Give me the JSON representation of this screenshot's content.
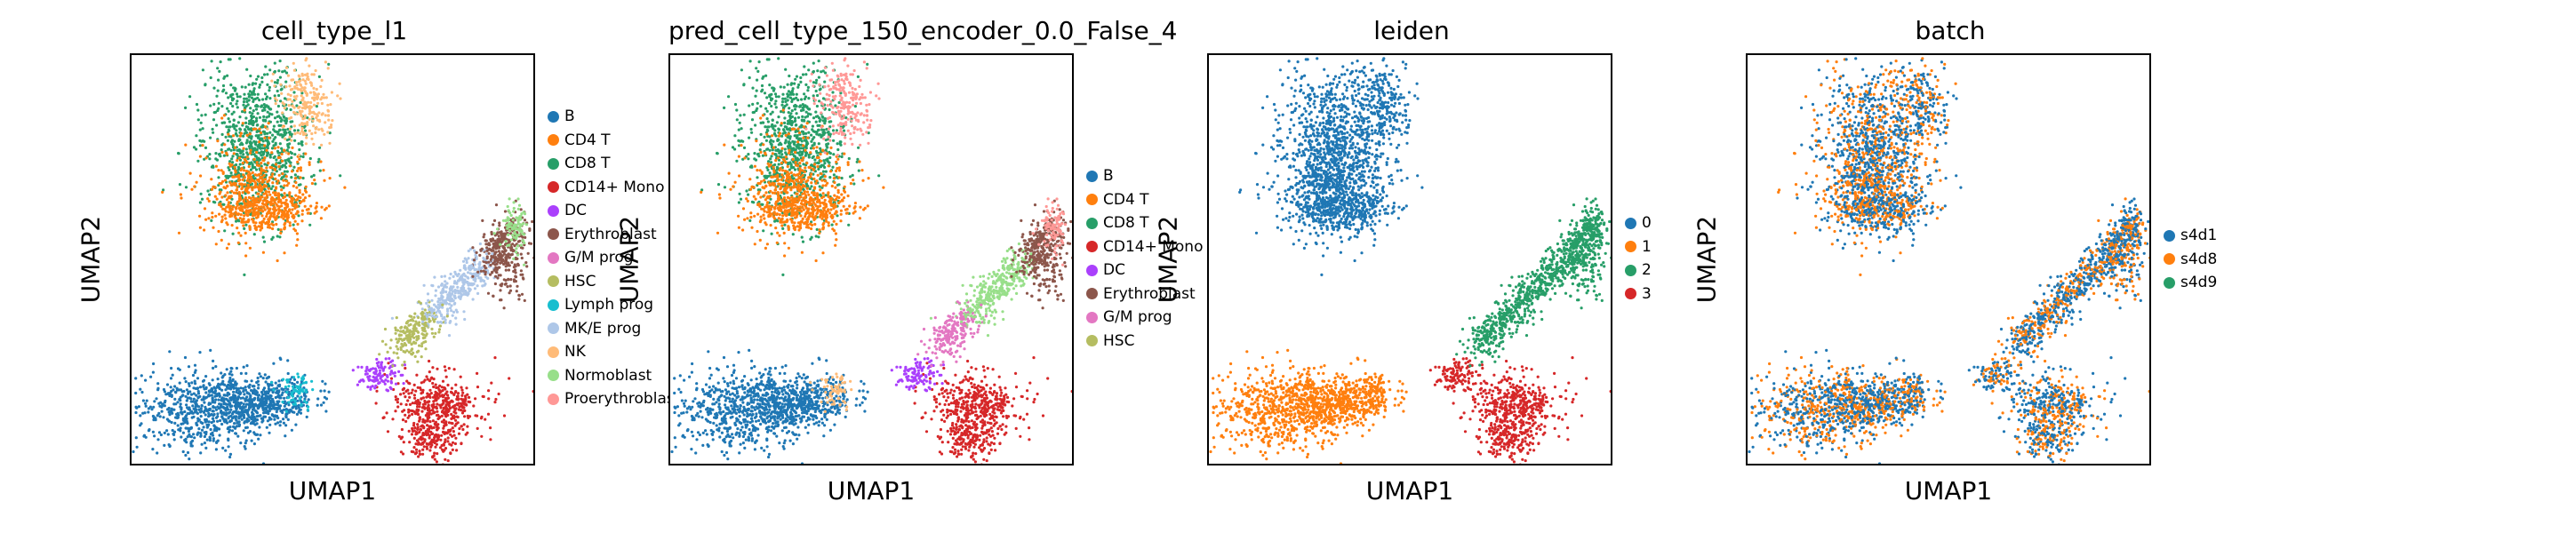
{
  "palette": {
    "B": "#1f77b4",
    "CD4 T": "#ff7f0e",
    "CD8 T": "#279e68",
    "CD14+ Mono": "#d62728",
    "DC": "#aa40fc",
    "Erythroblast": "#8c564b",
    "G/M prog": "#e377c2",
    "HSC": "#b5bd61",
    "Lymph prog": "#17becf",
    "MK/E prog": "#aec7e8",
    "NK": "#ffbb78",
    "Normoblast": "#98df8a",
    "Proerythroblast": "#ff9896"
  },
  "chart_data": [
    {
      "type": "scatter",
      "title": "cell_type_l1",
      "xlabel": "UMAP1",
      "ylabel": "UMAP2",
      "legend_position": "right",
      "legend": [
        "B",
        "CD4 T",
        "CD8 T",
        "CD14+ Mono",
        "DC",
        "Erythroblast",
        "G/M prog",
        "HSC",
        "Lymph prog",
        "MK/E prog",
        "NK",
        "Normoblast",
        "Proerythroblast"
      ],
      "legend_display": [
        "B",
        "CD4 T",
        "CD8 T",
        "CD14+ Mono",
        "DC",
        "Erythroblast",
        "G/M prog",
        "HSC",
        "Lymph prog",
        "MK/E prog",
        "NK",
        "Normoblast",
        "Proerythroblas"
      ]
    },
    {
      "type": "scatter",
      "title": "pred_cell_type_150_encoder_0.0_False_4",
      "xlabel": "UMAP1",
      "ylabel": "UMAP2",
      "legend_position": "right",
      "legend": [
        "B",
        "CD4 T",
        "CD8 T",
        "CD14+ Mono",
        "DC",
        "Erythroblast",
        "G/M prog",
        "HSC"
      ],
      "legend_display": [
        "B",
        "CD4 T",
        "CD8 T",
        "CD14+ Mono",
        "DC",
        "Erythroblast",
        "G/M prog",
        "HSC"
      ]
    },
    {
      "type": "scatter",
      "title": "leiden",
      "xlabel": "UMAP1",
      "ylabel": "UMAP2",
      "legend_position": "right",
      "legend": [
        "0",
        "1",
        "2",
        "3"
      ],
      "legend_display": [
        "0",
        "1",
        "2",
        "3"
      ],
      "colors": {
        "0": "#1f77b4",
        "1": "#ff7f0e",
        "2": "#279e68",
        "3": "#d62728"
      }
    },
    {
      "type": "scatter",
      "title": "batch",
      "xlabel": "UMAP1",
      "ylabel": "UMAP2",
      "legend_position": "right",
      "legend": [
        "s4d1",
        "s4d8",
        "s4d9"
      ],
      "legend_display": [
        "s4d1",
        "s4d8",
        "s4d9"
      ],
      "colors": {
        "s4d1": "#1f77b4",
        "s4d8": "#ff7f0e",
        "s4d9": "#279e68"
      }
    }
  ]
}
